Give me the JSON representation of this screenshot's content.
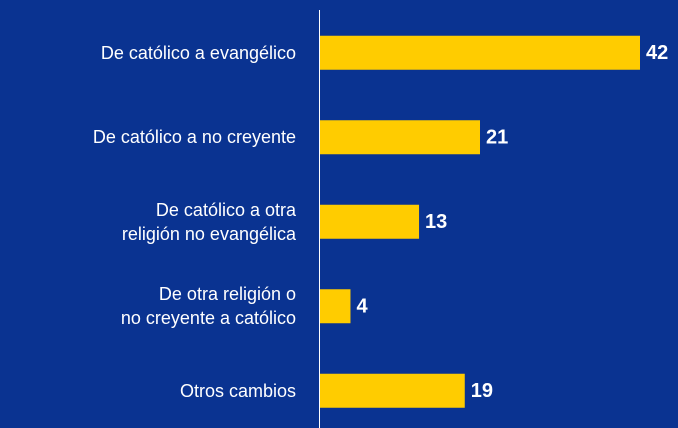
{
  "chart_data": {
    "type": "barh",
    "categories": [
      "De católico a evangélico",
      "De católico a no creyente",
      "De católico a otra\nreligión no evangélica",
      "De otra religión o\nno creyente a católico",
      "Otros cambios"
    ],
    "values": [
      42,
      21,
      13,
      4,
      19
    ],
    "color": "#ffcc00",
    "background": "#0a3391"
  }
}
